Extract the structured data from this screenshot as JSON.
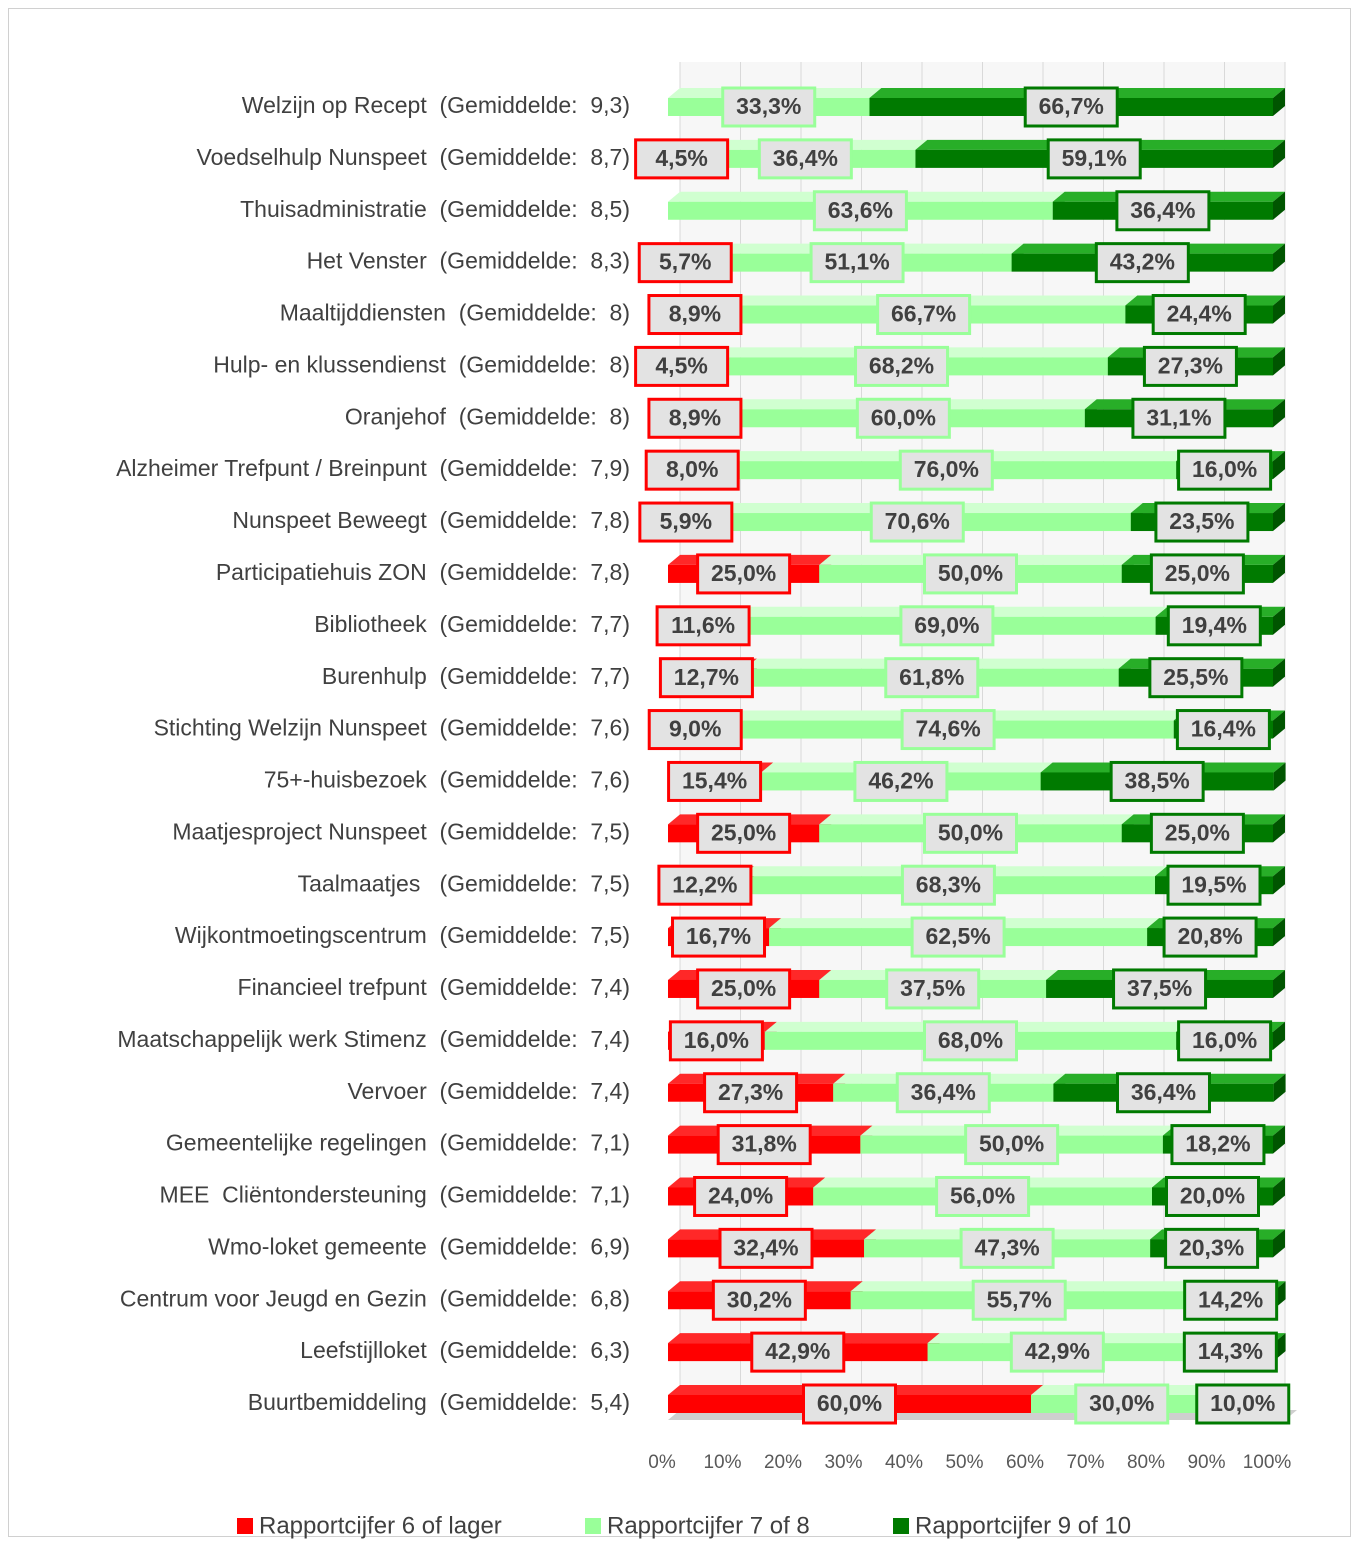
{
  "chart_data": {
    "type": "stacked_bar_horizontal",
    "categories": [
      "Welzijn op Recept  (Gemiddelde:  9,3)",
      "Voedselhulp Nunspeet  (Gemiddelde:  8,7)",
      "Thuisadministratie  (Gemiddelde:  8,5)",
      "Het Venster  (Gemiddelde:  8,3)",
      "Maaltijddiensten  (Gemiddelde:  8)",
      "Hulp- en klussendienst  (Gemiddelde:  8)",
      "Oranjehof  (Gemiddelde:  8)",
      "Alzheimer Trefpunt / Breinpunt  (Gemiddelde:  7,9)",
      "Nunspeet Beweegt  (Gemiddelde:  7,8)",
      "Participatiehuis ZON  (Gemiddelde:  7,8)",
      "Bibliotheek  (Gemiddelde:  7,7)",
      "Burenhulp  (Gemiddelde:  7,7)",
      "Stichting Welzijn Nunspeet  (Gemiddelde:  7,6)",
      "75+-huisbezoek  (Gemiddelde:  7,6)",
      "Maatjesproject Nunspeet  (Gemiddelde:  7,5)",
      "Taalmaatjes   (Gemiddelde:  7,5)",
      "Wijkontmoetingscentrum  (Gemiddelde:  7,5)",
      "Financieel trefpunt  (Gemiddelde:  7,4)",
      "Maatschappelijk werk Stimenz  (Gemiddelde:  7,4)",
      "Vervoer  (Gemiddelde:  7,4)",
      "Gemeentelijke regelingen  (Gemiddelde:  7,1)",
      "MEE  Cliëntondersteuning  (Gemiddelde:  7,1)",
      "Wmo-loket gemeente  (Gemiddelde:  6,9)",
      "Centrum voor Jeugd en Gezin  (Gemiddelde:  6,8)",
      "Leefstijlloket  (Gemiddelde:  6,3)",
      "Buurtbemiddeling  (Gemiddelde:  5,4)"
    ],
    "series": [
      {
        "name": "Rapportcijfer 6 of lager",
        "color": "#ff0000",
        "values": [
          null,
          4.5,
          null,
          5.7,
          8.9,
          4.5,
          8.9,
          8.0,
          5.9,
          25.0,
          11.6,
          12.7,
          9.0,
          15.4,
          25.0,
          12.2,
          16.7,
          25.0,
          16.0,
          27.3,
          31.8,
          24.0,
          32.4,
          30.2,
          42.9,
          60.0
        ],
        "value_labels": [
          null,
          "4,5%",
          null,
          "5,7%",
          "8,9%",
          "4,5%",
          "8,9%",
          "8,0%",
          "5,9%",
          "25,0%",
          "11,6%",
          "12,7%",
          "9,0%",
          "15,4%",
          "25,0%",
          "12,2%",
          "16,7%",
          "25,0%",
          "16,0%",
          "27,3%",
          "31,8%",
          "24,0%",
          "32,4%",
          "30,2%",
          "42,9%",
          "60,0%"
        ]
      },
      {
        "name": "Rapportcijfer 7 of 8",
        "color": "#99ff99",
        "values": [
          33.3,
          36.4,
          63.6,
          51.1,
          66.7,
          68.2,
          60.0,
          76.0,
          70.6,
          50.0,
          69.0,
          61.8,
          74.6,
          46.2,
          50.0,
          68.3,
          62.5,
          37.5,
          68.0,
          36.4,
          50.0,
          56.0,
          47.3,
          55.7,
          42.9,
          30.0
        ],
        "value_labels": [
          "33,3%",
          "36,4%",
          "63,6%",
          "51,1%",
          "66,7%",
          "68,2%",
          "60,0%",
          "76,0%",
          "70,6%",
          "50,0%",
          "69,0%",
          "61,8%",
          "74,6%",
          "46,2%",
          "50,0%",
          "68,3%",
          "62,5%",
          "37,5%",
          "68,0%",
          "36,4%",
          "50,0%",
          "56,0%",
          "47,3%",
          "55,7%",
          "42,9%",
          "30,0%"
        ]
      },
      {
        "name": "Rapportcijfer 9 of 10",
        "color": "#007a00",
        "values": [
          66.7,
          59.1,
          36.4,
          43.2,
          24.4,
          27.3,
          31.1,
          16.0,
          23.5,
          25.0,
          19.4,
          25.5,
          16.4,
          38.5,
          25.0,
          19.5,
          20.8,
          37.5,
          16.0,
          36.4,
          18.2,
          20.0,
          20.3,
          14.2,
          14.3,
          10.0
        ],
        "value_labels": [
          "66,7%",
          "59,1%",
          "36,4%",
          "43,2%",
          "24,4%",
          "27,3%",
          "31,1%",
          "16,0%",
          "23,5%",
          "25,0%",
          "19,4%",
          "25,5%",
          "16,4%",
          "38,5%",
          "25,0%",
          "19,5%",
          "20,8%",
          "37,5%",
          "16,0%",
          "36,4%",
          "18,2%",
          "20,0%",
          "20,3%",
          "14,2%",
          "14,3%",
          "10,0%"
        ]
      }
    ],
    "xlim": [
      0,
      100
    ],
    "xticks": [
      {
        "value": 0,
        "label": "0%"
      },
      {
        "value": 10,
        "label": "10%"
      },
      {
        "value": 20,
        "label": "20%"
      },
      {
        "value": 30,
        "label": "30%"
      },
      {
        "value": 40,
        "label": "40%"
      },
      {
        "value": 50,
        "label": "50%"
      },
      {
        "value": 60,
        "label": "60%"
      },
      {
        "value": 70,
        "label": "70%"
      },
      {
        "value": 80,
        "label": "80%"
      },
      {
        "value": 90,
        "label": "90%"
      },
      {
        "value": 100,
        "label": "100%"
      }
    ],
    "grid": true,
    "legend": "bottom"
  }
}
